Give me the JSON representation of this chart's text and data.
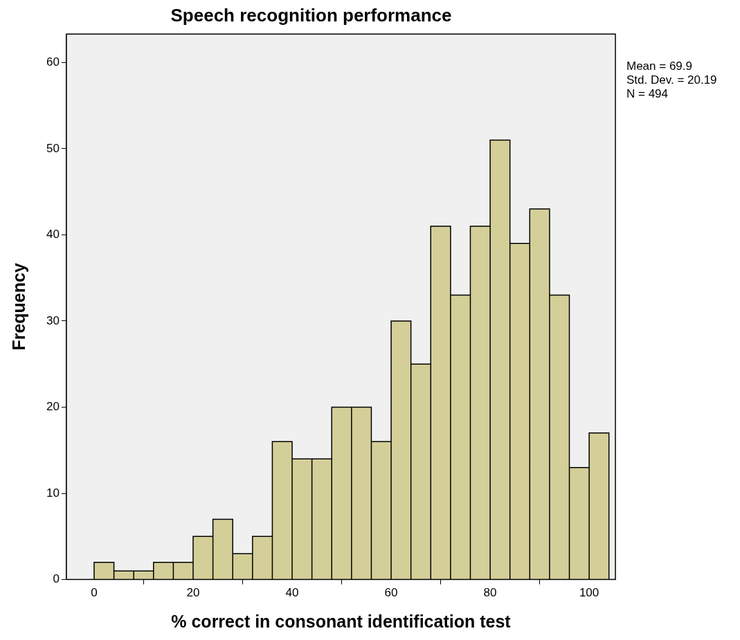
{
  "chart_data": {
    "type": "histogram",
    "title": "Speech recognition performance",
    "xlabel": "% correct in consonant identification test",
    "ylabel": "Frequency",
    "annotations": [
      "Mean = 69.9",
      "Std. Dev. = 20.19",
      "N = 494"
    ],
    "bins": [
      0,
      4,
      8,
      12,
      16,
      20,
      24,
      28,
      32,
      36,
      40,
      44,
      48,
      52,
      56,
      60,
      64,
      68,
      72,
      76,
      80,
      84,
      88,
      92,
      96,
      100,
      104
    ],
    "values": [
      2,
      1,
      1,
      2,
      2,
      5,
      7,
      3,
      5,
      16,
      14,
      14,
      20,
      20,
      16,
      30,
      25,
      41,
      33,
      41,
      51,
      39,
      43,
      33,
      13,
      17
    ],
    "color": "#d4cf98",
    "xlim": [
      -5.6,
      105.3
    ],
    "ylim": [
      0,
      63.3
    ],
    "xticks": [
      0,
      20,
      40,
      60,
      80,
      100
    ],
    "yticks": [
      0,
      10,
      20,
      30,
      40,
      50,
      60
    ],
    "grid": false,
    "legend": false
  }
}
